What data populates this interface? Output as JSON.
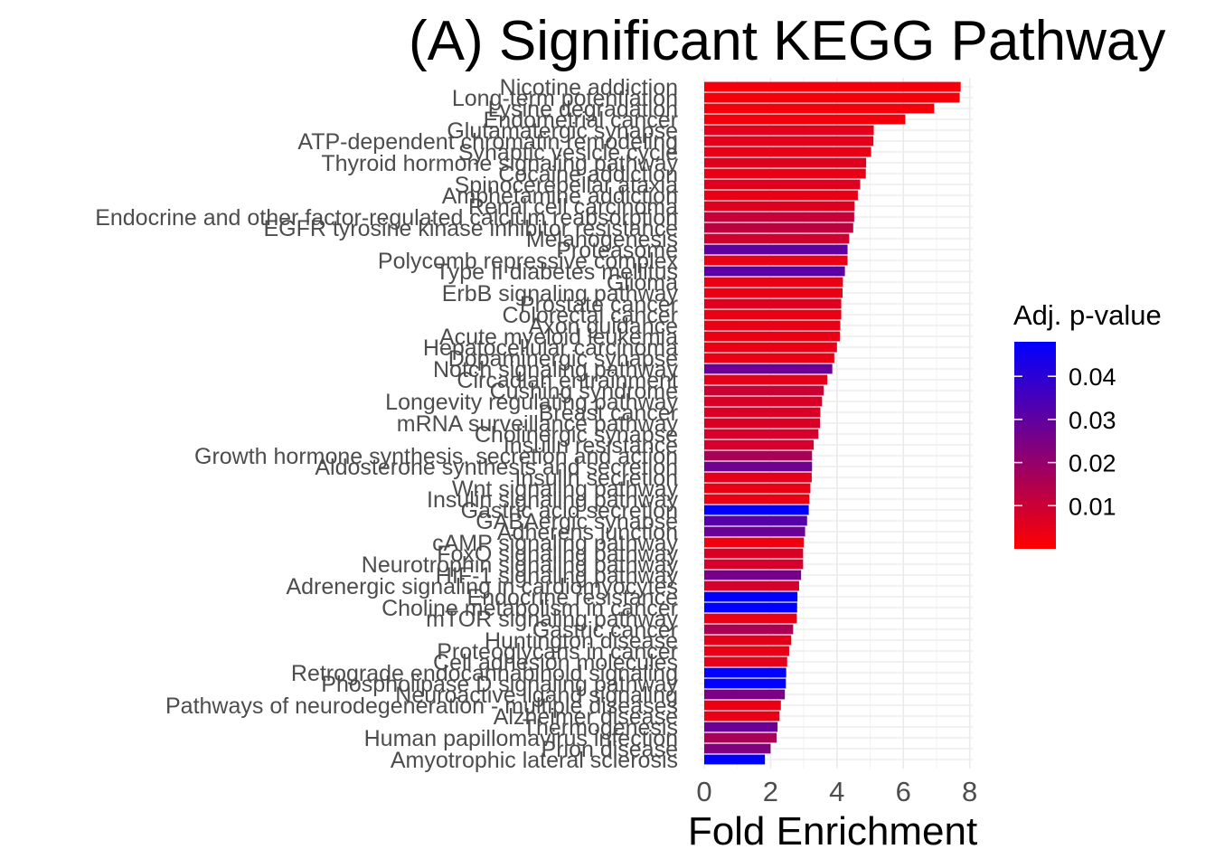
{
  "chart_data": {
    "type": "bar",
    "orientation": "horizontal",
    "title": "(A) Significant KEGG Pathway",
    "xlabel": "Fold Enrichment",
    "ylabel": "",
    "xlim": [
      0,
      8
    ],
    "x_ticks": [
      "0",
      "2",
      "4",
      "6",
      "8"
    ],
    "x_tick_values": [
      0,
      2,
      4,
      6,
      8
    ],
    "grid": true,
    "legend": {
      "title": "Adj. p-value",
      "placement": "right",
      "ticks": [
        "0.04",
        "0.03",
        "0.02",
        "0.01"
      ],
      "tick_values": [
        0.04,
        0.03,
        0.02,
        0.01
      ],
      "range": [
        0.0,
        0.048
      ],
      "low_color": "#ff0000",
      "high_color": "#0000ff"
    },
    "categories": [
      "Nicotine addiction",
      "Long-term potentiation",
      "Lysine degradation",
      "Endometrial cancer",
      "Glutamatergic synapse",
      "ATP-dependent chromatin remodeling",
      "Synaptic vesicle cycle",
      "Thyroid hormone signaling pathway",
      "Cocaine addiction",
      "Spinocerebellar ataxia",
      "Amphetamine addiction",
      "Renal cell carcinoma",
      "Endocrine and other factor-regulated calcium reabsorption",
      "EGFR tyrosine kinase inhibitor resistance",
      "Melanogenesis",
      "Proteasome",
      "Polycomb repressive complex",
      "Type II diabetes mellitus",
      "Glioma",
      "ErbB signaling pathway",
      "Prostate cancer",
      "Colorectal cancer",
      "Axon guidance",
      "Acute myeloid leukemia",
      "Hepatocellular carcinoma",
      "Dopaminergic synapse",
      "Notch signaling pathway",
      "Circadian entrainment",
      "Cushing syndrome",
      "Longevity regulating pathway",
      "Breast cancer",
      "mRNA surveillance pathway",
      "Cholinergic synapse",
      "Insulin resistance",
      "Growth hormone synthesis, secretion and action",
      "Aldosterone synthesis and secretion",
      "Insulin secretion",
      "Wnt signaling pathway",
      "Insulin signaling pathway",
      "Gastric acid secretion",
      "GABAergic synapse",
      "Adherens junction",
      "cAMP signaling pathway",
      "FoxO signaling pathway",
      "Neurotrophin signaling pathway",
      "HIF-1 signaling pathway",
      "Adrenergic signaling in cardiomyocytes",
      "Endocrine resistance",
      "Choline metabolism in cancer",
      "mTOR signaling pathway",
      "Gastric cancer",
      "Huntington disease",
      "Proteoglycans in cancer",
      "Cell adhesion molecules",
      "Retrograde endocannabinoid signaling",
      "Phospholipase D signaling pathway",
      "Neuroactive ligand signaling",
      "Pathways of neurodegeneration - multiple diseases",
      "Alzheimer disease",
      "Thermogenesis",
      "Human papillomavirus infection",
      "Prion disease",
      "Amyotrophic lateral sclerosis"
    ],
    "values": [
      7.73,
      7.7,
      6.93,
      6.06,
      5.11,
      5.1,
      5.03,
      4.88,
      4.87,
      4.7,
      4.63,
      4.53,
      4.52,
      4.49,
      4.37,
      4.32,
      4.32,
      4.24,
      4.18,
      4.17,
      4.13,
      4.13,
      4.1,
      4.09,
      4.0,
      3.92,
      3.86,
      3.71,
      3.6,
      3.55,
      3.5,
      3.49,
      3.44,
      3.3,
      3.25,
      3.25,
      3.24,
      3.2,
      3.17,
      3.15,
      3.1,
      3.04,
      3.0,
      2.98,
      2.98,
      2.92,
      2.86,
      2.81,
      2.8,
      2.79,
      2.68,
      2.62,
      2.56,
      2.5,
      2.47,
      2.46,
      2.43,
      2.31,
      2.27,
      2.21,
      2.18,
      2.0,
      1.83
    ],
    "padj": [
      0.002,
      0.002,
      0.002,
      0.002,
      0.005,
      0.005,
      0.004,
      0.006,
      0.004,
      0.006,
      0.004,
      0.006,
      0.011,
      0.012,
      0.009,
      0.03,
      0.004,
      0.031,
      0.004,
      0.004,
      0.006,
      0.004,
      0.004,
      0.004,
      0.004,
      0.004,
      0.028,
      0.005,
      0.01,
      0.007,
      0.007,
      0.007,
      0.008,
      0.008,
      0.016,
      0.027,
      0.005,
      0.004,
      0.004,
      0.048,
      0.032,
      0.028,
      0.003,
      0.007,
      0.008,
      0.026,
      0.008,
      0.048,
      0.048,
      0.004,
      0.016,
      0.005,
      0.004,
      0.005,
      0.048,
      0.048,
      0.025,
      0.004,
      0.004,
      0.028,
      0.016,
      0.024,
      0.048
    ]
  }
}
